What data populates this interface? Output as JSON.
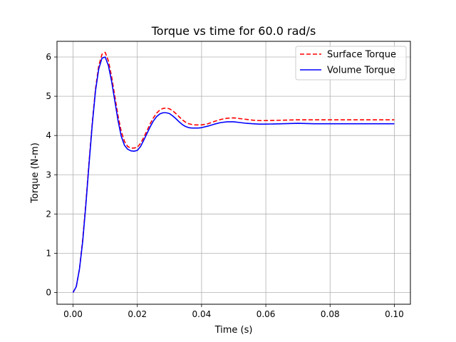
{
  "chart_data": {
    "type": "line",
    "title": "Torque vs time for 60.0 rad/s",
    "xlabel": "Time (s)",
    "ylabel": "Torque (N-m)",
    "xlim": [
      -0.005,
      0.105
    ],
    "ylim": [
      -0.3,
      6.4
    ],
    "grid": true,
    "legend_position": "top-right",
    "x_ticks": [
      0.0,
      0.02,
      0.04,
      0.06,
      0.08,
      0.1
    ],
    "x_tick_labels": [
      "0.00",
      "0.02",
      "0.04",
      "0.06",
      "0.08",
      "0.10"
    ],
    "y_ticks": [
      0,
      1,
      2,
      3,
      4,
      5,
      6
    ],
    "y_tick_labels": [
      "0",
      "1",
      "2",
      "3",
      "4",
      "5",
      "6"
    ],
    "series": [
      {
        "name": "Surface Torque",
        "color": "#ff0000",
        "style": "dashed",
        "x": [
          0.0,
          0.001,
          0.002,
          0.003,
          0.004,
          0.005,
          0.006,
          0.007,
          0.008,
          0.009,
          0.01,
          0.011,
          0.012,
          0.013,
          0.014,
          0.015,
          0.016,
          0.017,
          0.018,
          0.019,
          0.02,
          0.021,
          0.022,
          0.023,
          0.024,
          0.025,
          0.026,
          0.027,
          0.028,
          0.029,
          0.03,
          0.031,
          0.032,
          0.033,
          0.034,
          0.035,
          0.036,
          0.037,
          0.038,
          0.039,
          0.04,
          0.042,
          0.044,
          0.046,
          0.048,
          0.05,
          0.052,
          0.054,
          0.056,
          0.058,
          0.06,
          0.065,
          0.07,
          0.075,
          0.08,
          0.085,
          0.09,
          0.095,
          0.1
        ],
        "y": [
          0.0,
          0.15,
          0.6,
          1.35,
          2.3,
          3.35,
          4.35,
          5.2,
          5.78,
          6.07,
          6.12,
          5.9,
          5.5,
          5.0,
          4.5,
          4.1,
          3.85,
          3.72,
          3.68,
          3.68,
          3.7,
          3.8,
          3.95,
          4.12,
          4.3,
          4.45,
          4.57,
          4.65,
          4.69,
          4.7,
          4.68,
          4.63,
          4.56,
          4.48,
          4.4,
          4.34,
          4.3,
          4.28,
          4.27,
          4.27,
          4.27,
          4.3,
          4.36,
          4.41,
          4.44,
          4.45,
          4.43,
          4.41,
          4.39,
          4.38,
          4.38,
          4.39,
          4.4,
          4.4,
          4.4,
          4.4,
          4.4,
          4.4,
          4.4
        ]
      },
      {
        "name": "Volume Torque",
        "color": "#0000ff",
        "style": "solid",
        "x": [
          0.0,
          0.001,
          0.002,
          0.003,
          0.004,
          0.005,
          0.006,
          0.007,
          0.008,
          0.009,
          0.01,
          0.011,
          0.012,
          0.013,
          0.014,
          0.015,
          0.016,
          0.017,
          0.018,
          0.019,
          0.02,
          0.021,
          0.022,
          0.023,
          0.024,
          0.025,
          0.026,
          0.027,
          0.028,
          0.029,
          0.03,
          0.031,
          0.032,
          0.033,
          0.034,
          0.035,
          0.036,
          0.037,
          0.038,
          0.039,
          0.04,
          0.042,
          0.044,
          0.046,
          0.048,
          0.05,
          0.052,
          0.054,
          0.056,
          0.058,
          0.06,
          0.065,
          0.07,
          0.075,
          0.08,
          0.085,
          0.09,
          0.095,
          0.1
        ],
        "y": [
          0.0,
          0.15,
          0.6,
          1.3,
          2.25,
          3.3,
          4.3,
          5.15,
          5.7,
          5.97,
          6.0,
          5.78,
          5.38,
          4.88,
          4.38,
          3.98,
          3.75,
          3.65,
          3.61,
          3.6,
          3.62,
          3.72,
          3.88,
          4.05,
          4.22,
          4.37,
          4.48,
          4.55,
          4.58,
          4.58,
          4.56,
          4.5,
          4.43,
          4.35,
          4.28,
          4.23,
          4.2,
          4.19,
          4.19,
          4.19,
          4.2,
          4.24,
          4.29,
          4.33,
          4.35,
          4.35,
          4.33,
          4.31,
          4.3,
          4.29,
          4.29,
          4.3,
          4.31,
          4.3,
          4.3,
          4.3,
          4.3,
          4.3,
          4.3
        ]
      }
    ]
  }
}
